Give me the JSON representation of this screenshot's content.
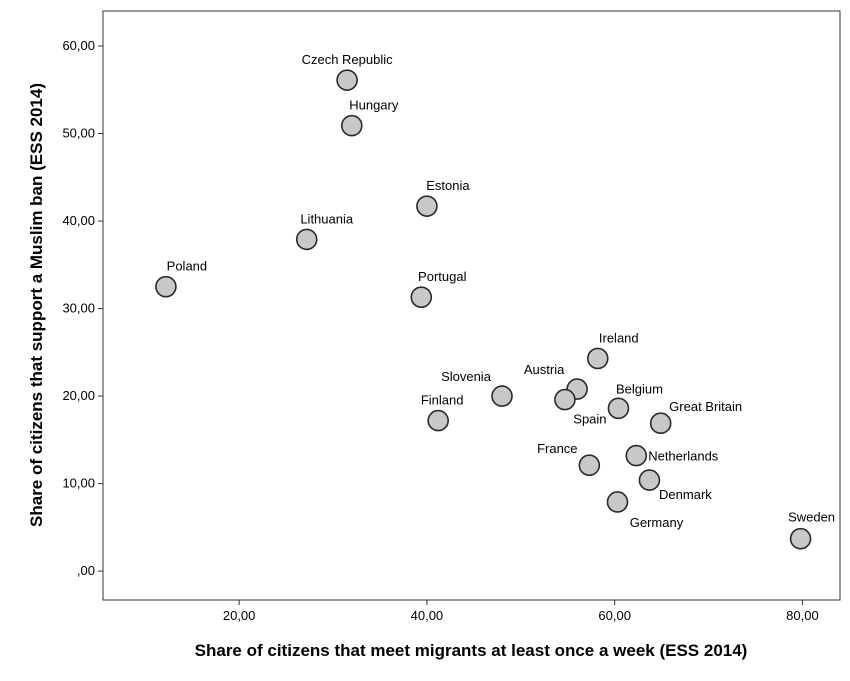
{
  "chart_data": {
    "type": "scatter",
    "title": "",
    "xlabel": "Share of citizens that meet migrants at least once a week (ESS 2014)",
    "ylabel": "Share of citizens that support a Muslim ban (ESS 2014)",
    "xlim": [
      5.5,
      84.0
    ],
    "ylim": [
      -3.3,
      64.0
    ],
    "xticks": [
      20,
      40,
      60,
      80
    ],
    "xtick_labels": [
      "20,00",
      "40,00",
      "60,00",
      "80,00"
    ],
    "yticks": [
      0,
      10,
      20,
      30,
      40,
      50,
      60
    ],
    "ytick_labels": [
      ",00",
      "10,00",
      "20,00",
      "30,00",
      "40,00",
      "50,00",
      "60,00"
    ],
    "grid": false,
    "legend": "none",
    "marker_fill": "#c8c8c8",
    "marker_stroke": "#2a2a2a",
    "points": [
      {
        "label": "Czech Republic",
        "x": 31.5,
        "y": 56.1
      },
      {
        "label": "Hungary",
        "x": 32.0,
        "y": 50.9
      },
      {
        "label": "Estonia",
        "x": 40.0,
        "y": 41.7
      },
      {
        "label": "Lithuania",
        "x": 27.2,
        "y": 37.9
      },
      {
        "label": "Poland",
        "x": 12.2,
        "y": 32.5
      },
      {
        "label": "Portugal",
        "x": 39.4,
        "y": 31.3
      },
      {
        "label": "Ireland",
        "x": 58.2,
        "y": 24.3
      },
      {
        "label": "Austria",
        "x": 56.0,
        "y": 20.8
      },
      {
        "label": "Slovenia",
        "x": 48.0,
        "y": 20.0
      },
      {
        "label": "Spain",
        "x": 54.7,
        "y": 19.6
      },
      {
        "label": "Belgium",
        "x": 60.4,
        "y": 18.6
      },
      {
        "label": "Great Britain",
        "x": 64.9,
        "y": 16.9
      },
      {
        "label": "Finland",
        "x": 41.2,
        "y": 17.2
      },
      {
        "label": "Netherlands",
        "x": 62.3,
        "y": 13.2
      },
      {
        "label": "France",
        "x": 57.3,
        "y": 12.1
      },
      {
        "label": "Denmark",
        "x": 63.7,
        "y": 10.4
      },
      {
        "label": "Germany",
        "x": 60.3,
        "y": 7.9
      },
      {
        "label": "Sweden",
        "x": 79.8,
        "y": 3.7
      }
    ]
  }
}
